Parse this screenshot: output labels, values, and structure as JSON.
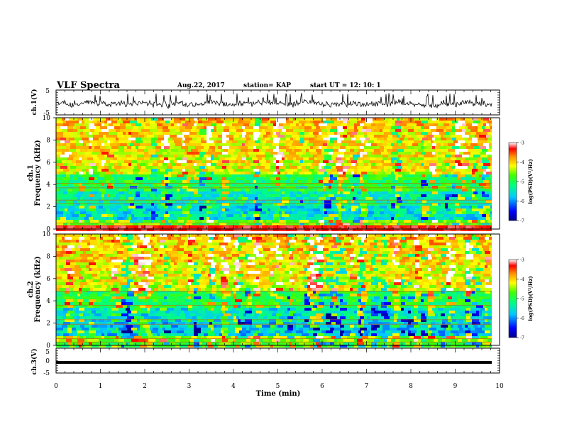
{
  "header": {
    "title": "VLF Spectra",
    "date": "Aug.22, 2017",
    "station": "station= KAP",
    "start": "start  UT  =   12: 10: 1"
  },
  "chart_data": [
    {
      "type": "line",
      "panel": "ch1-waveform",
      "ylabel": "ch.1(V)",
      "yticks": [
        "5",
        "-5"
      ],
      "ylim": [
        -5,
        5
      ],
      "xlim": [
        0,
        10
      ],
      "grid": false
    },
    {
      "type": "heatmap",
      "panel": "ch1-spectrogram",
      "ylabel_line1": "ch.1",
      "ylabel_line2": "Frequency (kHz)",
      "yticks": [
        "0",
        "2",
        "4",
        "6",
        "8",
        "10"
      ],
      "ylim": [
        0,
        10
      ],
      "xlim": [
        0,
        10
      ],
      "colorbar": {
        "label": "log(PSD)(V²/Hz)",
        "ticks": [
          "-3",
          "-4",
          "-5",
          "-6",
          "-7"
        ],
        "range": [
          -7,
          -3
        ]
      }
    },
    {
      "type": "heatmap",
      "panel": "ch2-spectrogram",
      "ylabel_line1": "ch.2",
      "ylabel_line2": "Frequency (kHz)",
      "yticks": [
        "0",
        "2",
        "4",
        "6",
        "8",
        "10"
      ],
      "ylim": [
        0,
        10
      ],
      "xlim": [
        0,
        10
      ],
      "colorbar": {
        "label": "log(PSD)(V²/Hz)",
        "ticks": [
          "-3",
          "-4",
          "-5",
          "-6",
          "-7"
        ],
        "range": [
          -7,
          -3
        ]
      }
    },
    {
      "type": "line",
      "panel": "ch3-waveform",
      "ylabel": "ch.3(V)",
      "yticks": [
        "5",
        "0",
        "-5"
      ],
      "ylim": [
        -5,
        5
      ],
      "xlim": [
        0,
        10
      ],
      "xticks": [
        "0",
        "1",
        "2",
        "3",
        "4",
        "5",
        "6",
        "7",
        "8",
        "9",
        "10"
      ],
      "xlabel": "Time  (min)",
      "grid": false
    }
  ]
}
